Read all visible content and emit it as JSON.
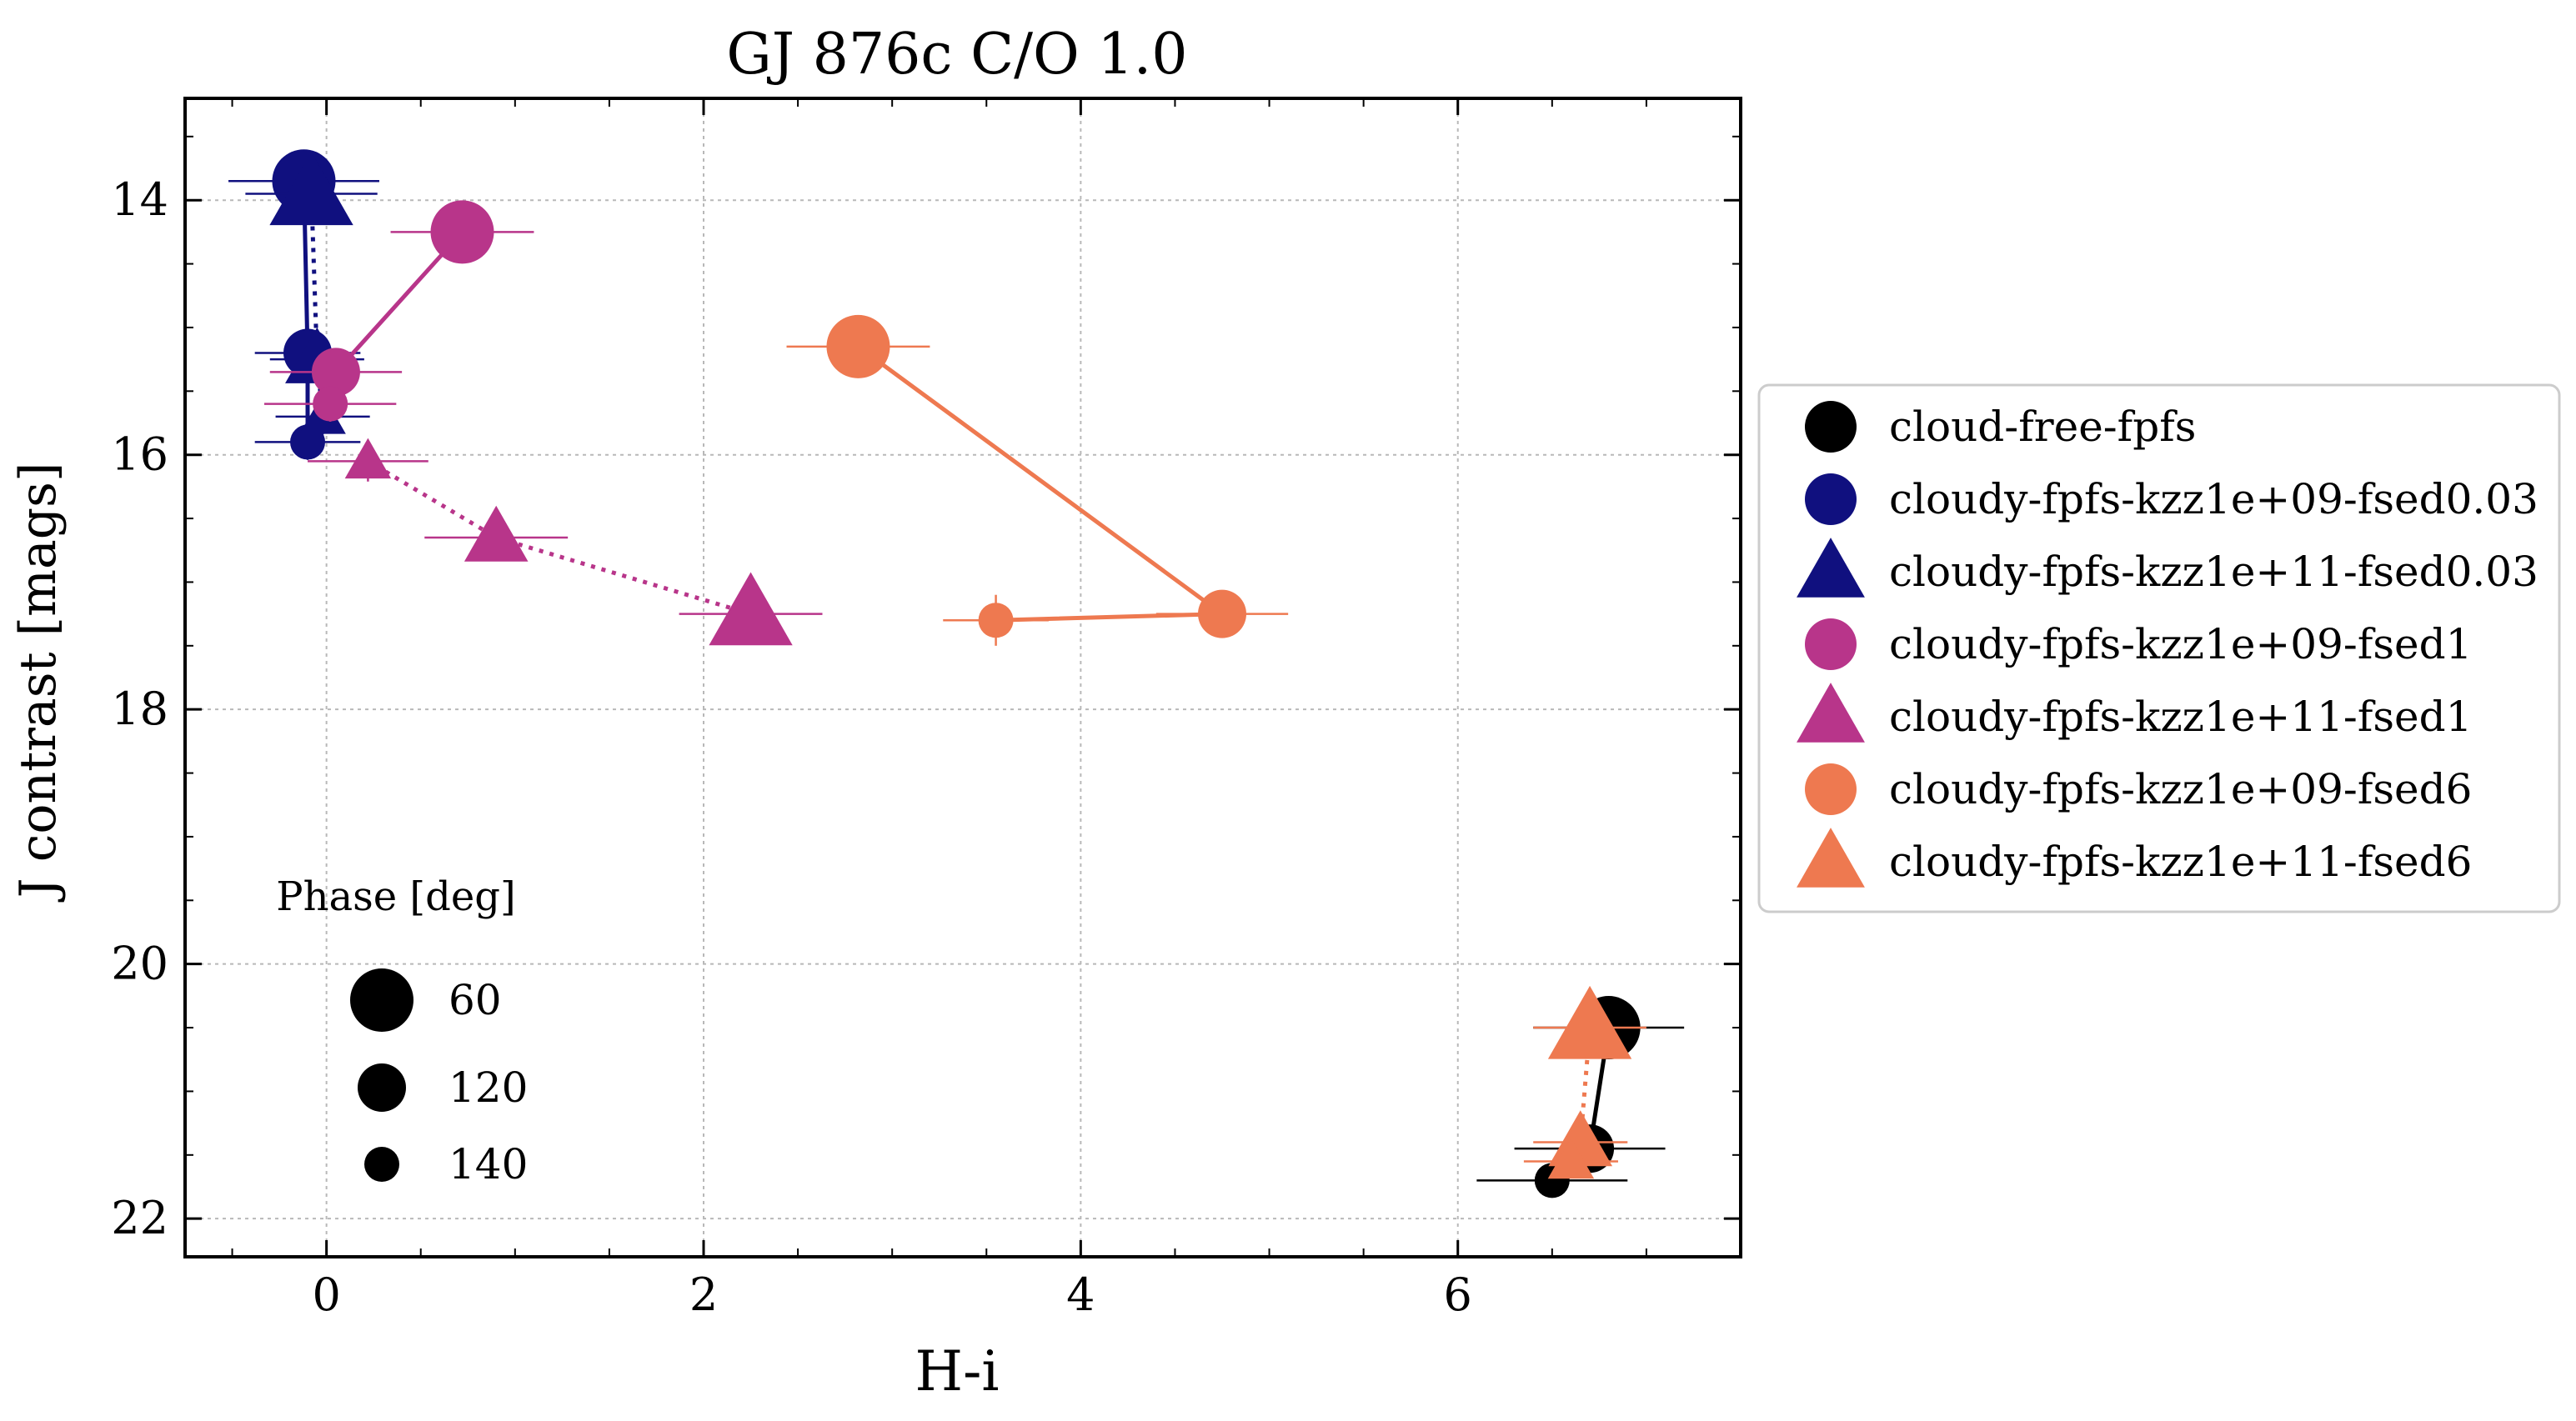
{
  "chart_data": {
    "type": "scatter",
    "title": "GJ 876c C/O 1.0",
    "xlabel": "H-i",
    "ylabel": "J contrast [mags]",
    "xlim": [
      -0.75,
      7.5
    ],
    "ylim": [
      22.3,
      13.2
    ],
    "y_inverted": true,
    "xticks": [
      0,
      2,
      4,
      6
    ],
    "yticks": [
      14,
      16,
      18,
      20,
      22
    ],
    "grid": true,
    "legend_position": "outside-right",
    "series": [
      {
        "name": "cloud-free-fpfs",
        "color": "#000000",
        "marker": "circle",
        "linestyle": "solid",
        "points": [
          {
            "phase": 60,
            "x": 6.8,
            "y": 20.5,
            "xerr": 0.4,
            "yerr": 0.08
          },
          {
            "phase": 120,
            "x": 6.7,
            "y": 21.45,
            "xerr": 0.4,
            "yerr": 0.1
          },
          {
            "phase": 140,
            "x": 6.5,
            "y": 21.7,
            "xerr": 0.4,
            "yerr": 0.12
          }
        ]
      },
      {
        "name": "cloudy-fpfs-kzz1e+09-fsed0.03",
        "color": "#10107f",
        "marker": "circle",
        "linestyle": "solid",
        "points": [
          {
            "phase": 60,
            "x": -0.12,
            "y": 13.85,
            "xerr": 0.4,
            "yerr": 0.1
          },
          {
            "phase": 120,
            "x": -0.1,
            "y": 15.2,
            "xerr": 0.28,
            "yerr": 0.12
          },
          {
            "phase": 140,
            "x": -0.1,
            "y": 15.9,
            "xerr": 0.28,
            "yerr": 0.14
          }
        ]
      },
      {
        "name": "cloudy-fpfs-kzz1e+11-fsed0.03",
        "color": "#10107f",
        "marker": "triangle",
        "linestyle": "dotted",
        "points": [
          {
            "phase": 60,
            "x": -0.08,
            "y": 13.95,
            "xerr": 0.35,
            "yerr": 0.1
          },
          {
            "phase": 120,
            "x": -0.05,
            "y": 15.25,
            "xerr": 0.25,
            "yerr": 0.12
          },
          {
            "phase": 140,
            "x": -0.02,
            "y": 15.7,
            "xerr": 0.25,
            "yerr": 0.14
          }
        ]
      },
      {
        "name": "cloudy-fpfs-kzz1e+09-fsed1",
        "color": "#b8358a",
        "marker": "circle",
        "linestyle": "solid",
        "points": [
          {
            "phase": 60,
            "x": 0.72,
            "y": 14.25,
            "xerr": 0.38,
            "yerr": 0.1
          },
          {
            "phase": 120,
            "x": 0.05,
            "y": 15.35,
            "xerr": 0.35,
            "yerr": 0.12
          },
          {
            "phase": 140,
            "x": 0.02,
            "y": 15.6,
            "xerr": 0.35,
            "yerr": 0.14
          }
        ]
      },
      {
        "name": "cloudy-fpfs-kzz1e+11-fsed1",
        "color": "#b8358a",
        "marker": "triangle",
        "linestyle": "dotted",
        "points": [
          {
            "phase": 60,
            "x": 2.25,
            "y": 17.25,
            "xerr": 0.38,
            "yerr": 0.1
          },
          {
            "phase": 120,
            "x": 0.9,
            "y": 16.65,
            "xerr": 0.38,
            "yerr": 0.12
          },
          {
            "phase": 140,
            "x": 0.22,
            "y": 16.05,
            "xerr": 0.32,
            "yerr": 0.16
          }
        ]
      },
      {
        "name": "cloudy-fpfs-kzz1e+09-fsed6",
        "color": "#ee7950",
        "marker": "circle",
        "linestyle": "solid",
        "points": [
          {
            "phase": 60,
            "x": 2.82,
            "y": 15.15,
            "xerr": 0.38,
            "yerr": 0.1
          },
          {
            "phase": 120,
            "x": 4.75,
            "y": 17.25,
            "xerr": 0.35,
            "yerr": 0.12
          },
          {
            "phase": 140,
            "x": 3.55,
            "y": 17.3,
            "xerr": 0.28,
            "yerr": 0.2
          }
        ]
      },
      {
        "name": "cloudy-fpfs-kzz1e+11-fsed6",
        "color": "#ee7950",
        "marker": "triangle",
        "linestyle": "dotted",
        "points": [
          {
            "phase": 60,
            "x": 6.7,
            "y": 20.5,
            "xerr": 0.3,
            "yerr": 0.08
          },
          {
            "phase": 120,
            "x": 6.65,
            "y": 21.4,
            "xerr": 0.25,
            "yerr": 0.1
          },
          {
            "phase": 140,
            "x": 6.6,
            "y": 21.55,
            "xerr": 0.25,
            "yerr": 0.12
          }
        ]
      }
    ],
    "phase_legend": {
      "title": "Phase [deg]",
      "entries": [
        {
          "label": "60",
          "phase": 60
        },
        {
          "label": "120",
          "phase": 120
        },
        {
          "label": "140",
          "phase": 140
        }
      ]
    }
  }
}
